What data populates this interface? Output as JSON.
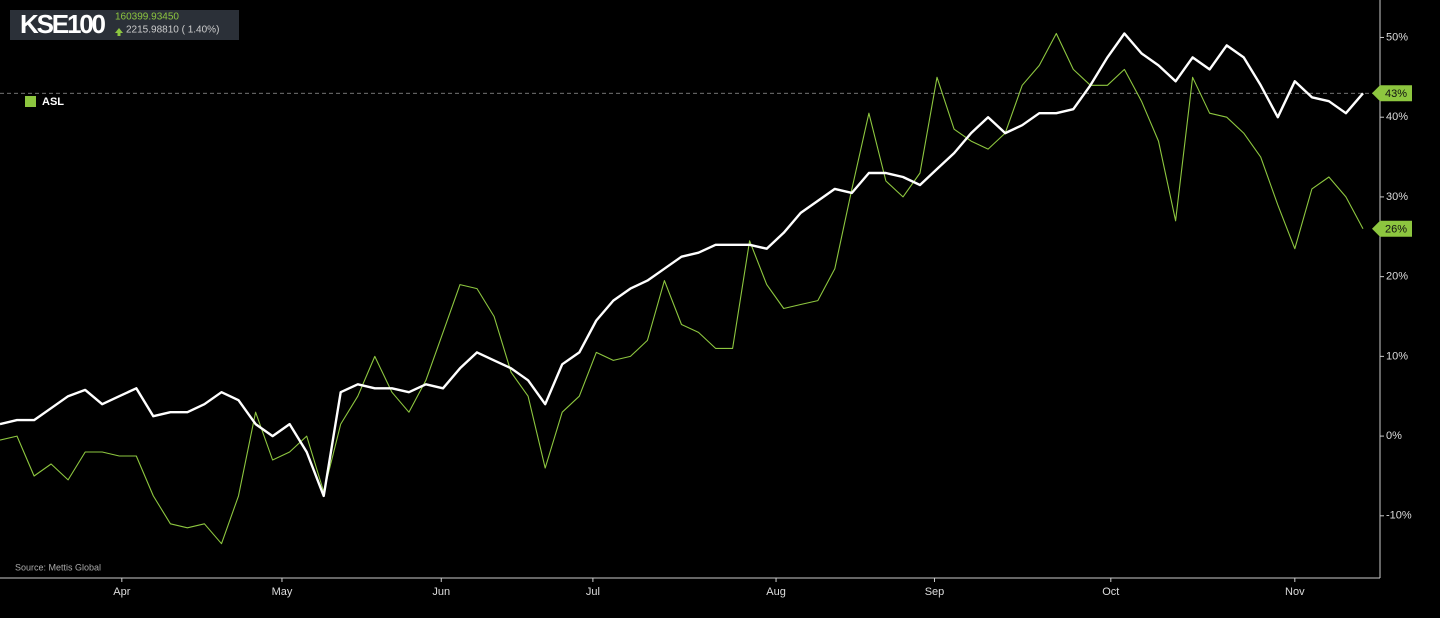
{
  "chart_data": {
    "type": "line",
    "title": "KSE100",
    "price": "160399.93450",
    "change": "2215.98810 ( 1.40%)",
    "source": "Source: Mettis Global",
    "x": [
      0,
      2,
      4,
      6,
      8,
      10,
      12,
      14,
      16,
      18,
      20,
      22,
      24,
      26,
      28,
      30,
      32,
      34,
      36,
      38,
      40,
      42,
      44,
      46,
      48,
      50,
      52,
      54,
      56,
      58,
      60,
      62,
      64,
      66,
      68,
      70,
      72,
      74,
      76,
      78,
      80,
      82,
      84,
      86,
      88,
      90,
      92,
      94,
      96,
      98,
      100,
      102,
      104,
      106,
      108,
      110,
      112,
      114,
      116,
      118,
      120,
      122,
      124,
      126,
      128,
      130,
      132,
      134,
      136,
      138,
      140,
      142,
      144,
      146,
      148,
      150,
      152,
      154,
      156,
      158,
      160
    ],
    "xlim": [
      0,
      162
    ],
    "xticks": [
      {
        "value": 14.3,
        "label": "Apr"
      },
      {
        "value": 33.1,
        "label": "May"
      },
      {
        "value": 51.8,
        "label": "Jun"
      },
      {
        "value": 69.6,
        "label": "Jul"
      },
      {
        "value": 91.1,
        "label": "Aug"
      },
      {
        "value": 109.7,
        "label": "Sep"
      },
      {
        "value": 130.4,
        "label": "Oct"
      },
      {
        "value": 152,
        "label": "Nov"
      }
    ],
    "ylim": [
      -17.8,
      54.7
    ],
    "yticks": [
      {
        "value": -10,
        "label": "-10%"
      },
      {
        "value": 0,
        "label": "0%"
      },
      {
        "value": 10,
        "label": "10%"
      },
      {
        "value": 20,
        "label": "20%"
      },
      {
        "value": 30,
        "label": "30%"
      },
      {
        "value": 40,
        "label": "40%"
      },
      {
        "value": 50,
        "label": "50%"
      }
    ],
    "reference_line": 43,
    "series": [
      {
        "name": "KSE100",
        "color": "#ffffff",
        "end_label": "43%",
        "legend": false,
        "values": [
          1.5,
          2,
          2,
          3.5,
          5,
          5.8,
          4,
          5,
          6,
          2.5,
          3,
          3,
          4,
          5.5,
          4.5,
          1.5,
          0,
          1.5,
          -2,
          -7.5,
          5.5,
          6.5,
          6,
          6,
          5.5,
          6.5,
          6,
          8.5,
          10.5,
          9.5,
          8.5,
          7,
          4,
          9,
          10.5,
          14.5,
          17,
          18.5,
          19.5,
          21,
          22.5,
          23,
          24,
          24,
          24,
          23.5,
          25.5,
          28,
          29.5,
          31,
          30.5,
          33,
          33,
          32.5,
          31.5,
          33.5,
          35.5,
          38,
          40,
          38,
          39,
          40.5,
          40.5,
          41,
          44,
          47.5,
          50.5,
          48,
          46.5,
          44.5,
          47.5,
          46,
          49,
          47.5,
          44,
          40,
          44.5,
          42.5,
          42,
          40.5,
          43
        ]
      },
      {
        "name": "ASL",
        "color": "#8dc63f",
        "end_label": "26%",
        "legend": true,
        "values": [
          -0.5,
          0,
          -5,
          -3.5,
          -5.5,
          -2,
          -2,
          -2.5,
          -2.5,
          -7.5,
          -11,
          -11.5,
          -11,
          -13.5,
          -7.5,
          3,
          -3,
          -2,
          0,
          -7,
          1.5,
          5,
          10,
          5.5,
          3,
          7,
          13,
          19,
          18.5,
          15,
          8,
          5,
          -4,
          3,
          5,
          10.5,
          9.5,
          10,
          12,
          19.5,
          14,
          13,
          11,
          11,
          24.5,
          19,
          16,
          16.5,
          17,
          21,
          31,
          40.5,
          32,
          30,
          33,
          45,
          38.5,
          37,
          36,
          38,
          44,
          46.5,
          50.5,
          46,
          44,
          44,
          46,
          42,
          37,
          27,
          45,
          40.5,
          40,
          38,
          35,
          29,
          23.5,
          31,
          32.5,
          30,
          26
        ]
      }
    ]
  }
}
